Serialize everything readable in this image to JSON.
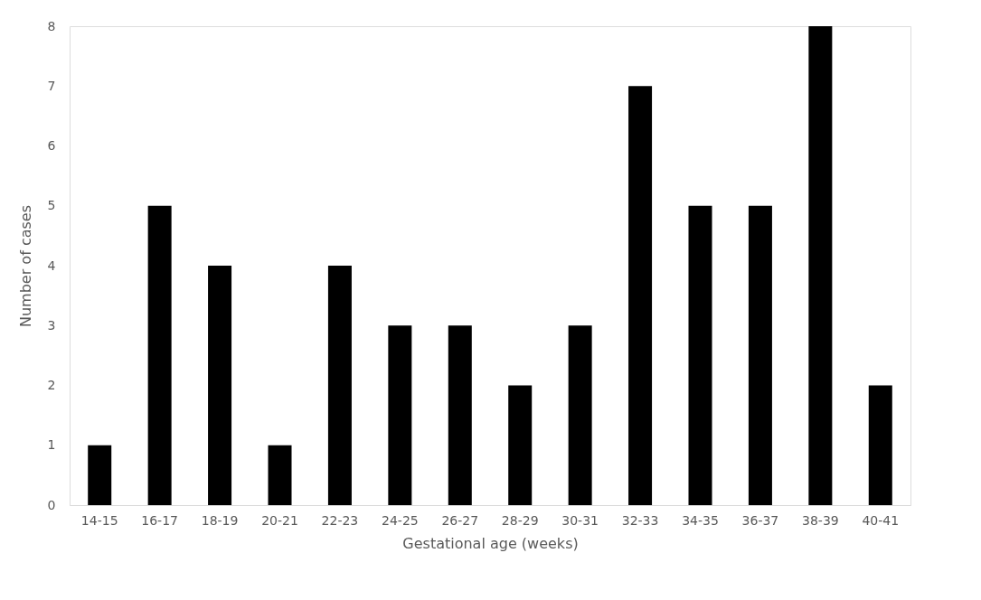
{
  "chart_data": {
    "type": "bar",
    "xlabel": "Gestational age (weeks)",
    "ylabel": "Number of cases",
    "categories": [
      "14-15",
      "16-17",
      "18-19",
      "20-21",
      "22-23",
      "24-25",
      "26-27",
      "28-29",
      "30-31",
      "32-33",
      "34-35",
      "36-37",
      "38-39",
      "40-41"
    ],
    "values": [
      1,
      5,
      4,
      1,
      4,
      3,
      3,
      2,
      3,
      7,
      5,
      5,
      8,
      2
    ],
    "color": "#000000",
    "ylim": [
      0,
      8
    ],
    "yticks": [
      0,
      1,
      2,
      3,
      4,
      5,
      6,
      7,
      8
    ],
    "grid": false
  }
}
